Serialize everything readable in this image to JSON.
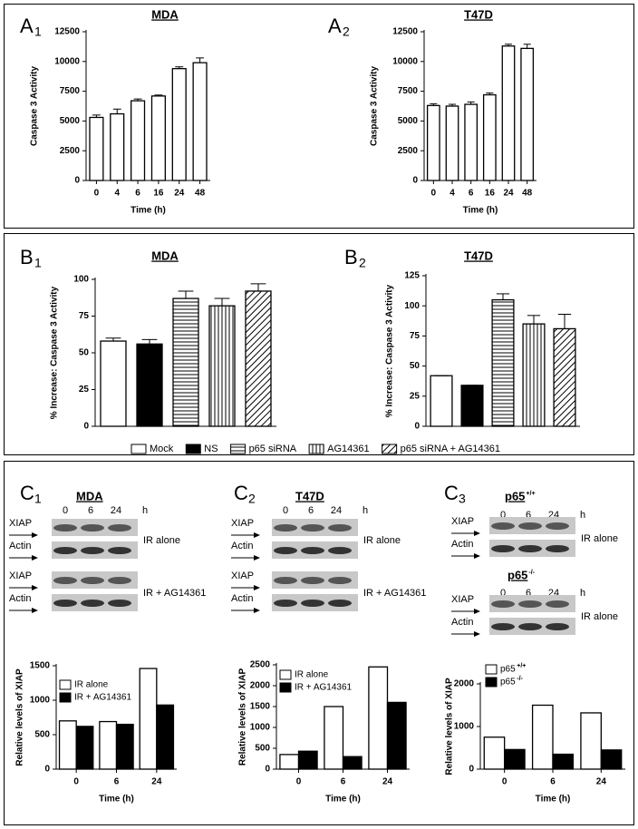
{
  "chart_data": [
    {
      "type": "bar",
      "label": "A",
      "label_sub": "1",
      "title": "MDA",
      "xlabel": "Time (h)",
      "ylabel": "Caspase 3 Activity",
      "categories": [
        "0",
        "4",
        "6",
        "16",
        "24",
        "48"
      ],
      "series": [
        {
          "fill": "#ffffff",
          "values": [
            5300,
            5600,
            6700,
            7100,
            9400,
            9900
          ],
          "errors": [
            200,
            400,
            150,
            80,
            150,
            400
          ]
        }
      ],
      "ylim": [
        0,
        12500
      ],
      "yticks": [
        0,
        2500,
        5000,
        7500,
        10000,
        12500
      ]
    },
    {
      "type": "bar",
      "label": "A",
      "label_sub": "2",
      "title": "T47D",
      "xlabel": "Time (h)",
      "ylabel": "Caspase 3 Activity",
      "categories": [
        "0",
        "4",
        "6",
        "16",
        "24",
        "48"
      ],
      "series": [
        {
          "fill": "#ffffff",
          "values": [
            6300,
            6250,
            6400,
            7200,
            11300,
            11100
          ],
          "errors": [
            150,
            150,
            200,
            150,
            150,
            350
          ]
        }
      ],
      "ylim": [
        0,
        12500
      ],
      "yticks": [
        0,
        2500,
        5000,
        7500,
        10000,
        12500
      ]
    },
    {
      "type": "bar",
      "label": "B",
      "label_sub": "1",
      "title": "MDA",
      "ylabel": "% Increase: Caspase 3 Activity",
      "series": [
        {
          "name": "Mock",
          "fill": "#ffffff",
          "values": [
            58
          ],
          "errors": [
            2
          ]
        },
        {
          "name": "NS",
          "fill": "#000000",
          "values": [
            56
          ],
          "errors": [
            3
          ]
        },
        {
          "name": "p65 siRNA",
          "fill": "horizontal",
          "values": [
            87
          ],
          "errors": [
            5
          ]
        },
        {
          "name": "AG14361",
          "fill": "vertical",
          "values": [
            82
          ],
          "errors": [
            5
          ]
        },
        {
          "name": "p65 siRNA + AG14361",
          "fill": "diagonal",
          "values": [
            92
          ],
          "errors": [
            5
          ]
        }
      ],
      "ylim": [
        0,
        100
      ],
      "yticks": [
        0,
        25,
        50,
        75,
        100
      ]
    },
    {
      "type": "bar",
      "label": "B",
      "label_sub": "2",
      "title": "T47D",
      "ylabel": "% Increase: Caspase 3 Activity",
      "series": [
        {
          "fill": "#ffffff",
          "values": [
            42
          ],
          "errors": [
            0
          ]
        },
        {
          "fill": "#000000",
          "values": [
            34
          ],
          "errors": [
            0
          ]
        },
        {
          "fill": "horizontal",
          "values": [
            105
          ],
          "errors": [
            5
          ]
        },
        {
          "fill": "vertical",
          "values": [
            85
          ],
          "errors": [
            7
          ]
        },
        {
          "fill": "diagonal",
          "values": [
            81
          ],
          "errors": [
            12
          ]
        }
      ],
      "ylim": [
        0,
        125
      ],
      "yticks": [
        0,
        25,
        50,
        75,
        100,
        125
      ]
    },
    {
      "type": "bar",
      "label": "C",
      "label_sub": "1",
      "title": "MDA",
      "xlabel": "Time (h)",
      "ylabel": "Relative levels of XIAP",
      "categories": [
        "0",
        "6",
        "24"
      ],
      "series": [
        {
          "name": "IR alone",
          "fill": "#ffffff",
          "values": [
            700,
            690,
            1460
          ]
        },
        {
          "name": "IR + AG14361",
          "fill": "#000000",
          "values": [
            620,
            650,
            930
          ]
        }
      ],
      "ylim": [
        0,
        1500
      ],
      "yticks": [
        0,
        500,
        1000,
        1500
      ],
      "blots": [
        {
          "times": [
            "0",
            "6",
            "24"
          ],
          "unit": "h",
          "groups": [
            {
              "bands": [
                "XIAP",
                "Actin"
              ],
              "label": "IR alone"
            },
            {
              "bands": [
                "XIAP",
                "Actin"
              ],
              "label": "IR + AG14361"
            }
          ]
        }
      ]
    },
    {
      "type": "bar",
      "label": "C",
      "label_sub": "2",
      "title": "T47D",
      "xlabel": "Time (h)",
      "ylabel": "Relative levels of XIAP",
      "categories": [
        "0",
        "6",
        "24"
      ],
      "series": [
        {
          "name": "IR alone",
          "fill": "#ffffff",
          "values": [
            350,
            1500,
            2450
          ]
        },
        {
          "name": "IR + AG14361",
          "fill": "#000000",
          "values": [
            430,
            300,
            1600
          ]
        }
      ],
      "ylim": [
        0,
        2500
      ],
      "yticks": [
        0,
        500,
        1000,
        1500,
        2000,
        2500
      ],
      "blots": [
        {
          "times": [
            "0",
            "6",
            "24"
          ],
          "unit": "h",
          "groups": [
            {
              "bands": [
                "XIAP",
                "Actin"
              ],
              "label": "IR alone"
            },
            {
              "bands": [
                "XIAP",
                "Actin"
              ],
              "label": "IR + AG14361"
            }
          ]
        }
      ]
    },
    {
      "type": "bar",
      "label": "C",
      "label_sub": "3",
      "title": "p65",
      "title_sup": "+/+",
      "xlabel": "Time (h)",
      "ylabel": "Relative levels of XIAP",
      "categories": [
        "0",
        "6",
        "24"
      ],
      "series": [
        {
          "name": "p65",
          "name_sup": "+/+",
          "fill": "#ffffff",
          "values": [
            750,
            1500,
            1320
          ]
        },
        {
          "name": "p65",
          "name_sup": "-/-",
          "fill": "#000000",
          "values": [
            460,
            350,
            450
          ]
        }
      ],
      "ylim": [
        0,
        2000
      ],
      "yticks": [
        0,
        1000,
        2000
      ],
      "blots": [
        {
          "times": [
            "0",
            "6",
            "24"
          ],
          "unit": "h",
          "groups": [
            {
              "bands": [
                "XIAP",
                "Actin"
              ],
              "label": "IR alone"
            }
          ]
        },
        {
          "title": "p65",
          "title_sup": "-/-",
          "times": [
            "0",
            "6",
            "24"
          ],
          "unit": "h",
          "groups": [
            {
              "bands": [
                "XIAP",
                "Actin"
              ],
              "label": "IR alone"
            }
          ]
        }
      ]
    }
  ]
}
